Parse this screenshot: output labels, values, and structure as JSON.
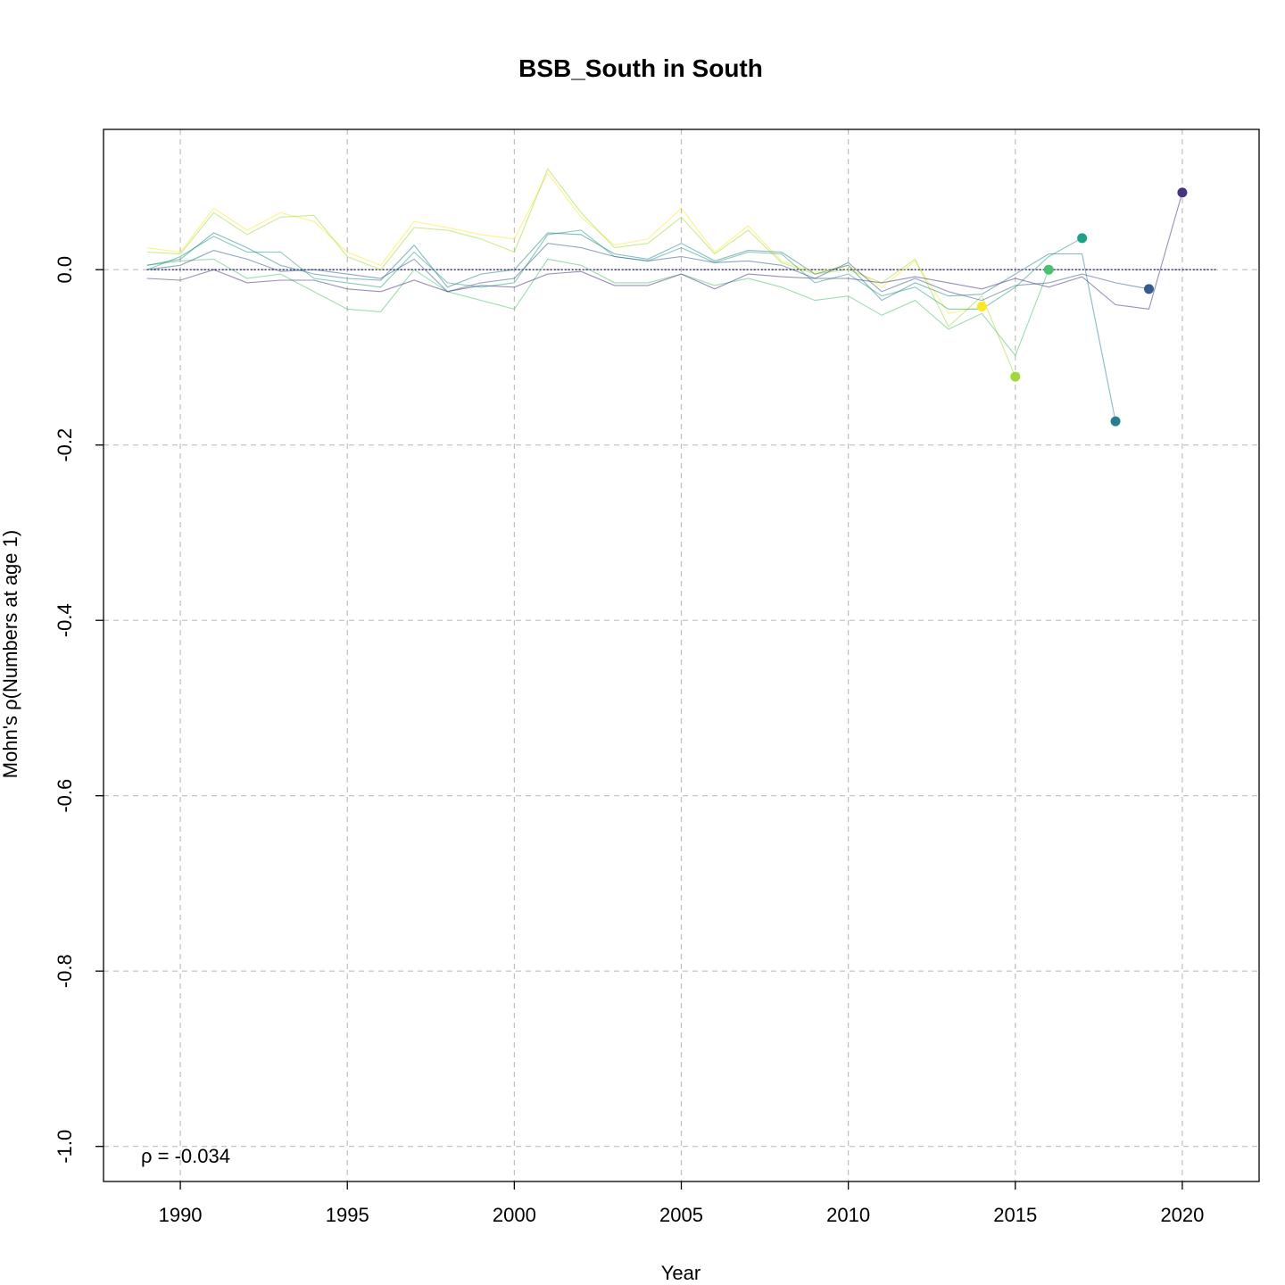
{
  "chart_data": {
    "type": "line",
    "title": "BSB_South in South",
    "xlabel": "Year",
    "ylabel": "Mohn's ρ(Numbers at age 1)",
    "xlim": [
      1987.7,
      2022.3
    ],
    "ylim": [
      -1.04,
      0.16
    ],
    "xticks": [
      1990,
      1995,
      2000,
      2005,
      2010,
      2015,
      2020
    ],
    "yticks": [
      -1.0,
      -0.8,
      -0.6,
      -0.4,
      -0.2,
      0.0
    ],
    "ytick_labels": [
      "-1.0",
      "-0.8",
      "-0.6",
      "-0.4",
      "-0.2",
      "0.0"
    ],
    "grid": true,
    "annotation": "ρ = -0.034",
    "reference_line": {
      "y": 0,
      "x_from": 1989,
      "x_to": 2021,
      "color": "#2d1e5e"
    },
    "series": [
      {
        "color": "#fde725",
        "end_year": 2014,
        "x": [
          1989,
          1990,
          1991,
          1992,
          1993,
          1994,
          1995,
          1996,
          1997,
          1998,
          1999,
          2000,
          2001,
          2002,
          2003,
          2004,
          2005,
          2006,
          2007,
          2008,
          2009,
          2010,
          2011,
          2012,
          2013,
          2014
        ],
        "y": [
          0.025,
          0.02,
          0.07,
          0.045,
          0.065,
          0.055,
          0.02,
          0.005,
          0.055,
          0.048,
          0.04,
          0.035,
          0.11,
          0.06,
          0.028,
          0.035,
          0.07,
          0.02,
          0.05,
          0.01,
          -0.003,
          0.005,
          -0.02,
          0.01,
          -0.05,
          -0.042
        ]
      },
      {
        "color": "#a0da39",
        "end_year": 2015,
        "x": [
          1989,
          1990,
          1991,
          1992,
          1993,
          1994,
          1995,
          1996,
          1997,
          1998,
          1999,
          2000,
          2001,
          2002,
          2003,
          2004,
          2005,
          2006,
          2007,
          2008,
          2009,
          2010,
          2011,
          2012,
          2013,
          2014,
          2015
        ],
        "y": [
          0.02,
          0.018,
          0.065,
          0.04,
          0.06,
          0.062,
          0.015,
          0.0,
          0.048,
          0.045,
          0.035,
          0.02,
          0.115,
          0.065,
          0.025,
          0.03,
          0.06,
          0.018,
          0.045,
          0.008,
          -0.005,
          0.0,
          -0.015,
          0.012,
          -0.065,
          -0.03,
          -0.122
        ]
      },
      {
        "color": "#4ac16d",
        "end_year": 2016,
        "x": [
          1989,
          1990,
          1991,
          1992,
          1993,
          1994,
          1995,
          1996,
          1997,
          1998,
          1999,
          2000,
          2001,
          2002,
          2003,
          2004,
          2005,
          2006,
          2007,
          2008,
          2009,
          2010,
          2011,
          2012,
          2013,
          2014,
          2015,
          2016
        ],
        "y": [
          0.005,
          0.01,
          0.012,
          -0.01,
          -0.005,
          -0.025,
          -0.045,
          -0.048,
          0.0,
          -0.025,
          -0.035,
          -0.045,
          0.012,
          0.005,
          -0.015,
          -0.015,
          -0.005,
          -0.018,
          -0.01,
          -0.02,
          -0.035,
          -0.03,
          -0.052,
          -0.035,
          -0.068,
          -0.05,
          -0.098,
          0.0
        ]
      },
      {
        "color": "#1fa187",
        "end_year": 2017,
        "x": [
          1989,
          1990,
          1991,
          1992,
          1993,
          1994,
          1995,
          1996,
          1997,
          1998,
          1999,
          2000,
          2001,
          2002,
          2003,
          2004,
          2005,
          2006,
          2007,
          2008,
          2009,
          2010,
          2011,
          2012,
          2013,
          2014,
          2015,
          2016,
          2017
        ],
        "y": [
          0.0,
          0.015,
          0.038,
          0.02,
          0.02,
          -0.01,
          -0.015,
          -0.02,
          0.02,
          -0.015,
          -0.02,
          -0.015,
          0.04,
          0.045,
          0.015,
          0.01,
          0.025,
          0.008,
          0.02,
          0.018,
          -0.015,
          -0.005,
          -0.03,
          -0.02,
          -0.045,
          -0.045,
          -0.02,
          0.015,
          0.036
        ]
      },
      {
        "color": "#277f8e",
        "end_year": 2018,
        "x": [
          1989,
          1990,
          1991,
          1992,
          1993,
          1994,
          1995,
          1996,
          1997,
          1998,
          1999,
          2000,
          2001,
          2002,
          2003,
          2004,
          2005,
          2006,
          2007,
          2008,
          2009,
          2010,
          2011,
          2012,
          2013,
          2014,
          2015,
          2016,
          2017,
          2018
        ],
        "y": [
          0.005,
          0.012,
          0.042,
          0.025,
          0.005,
          -0.005,
          -0.01,
          -0.012,
          0.028,
          -0.02,
          -0.005,
          0.0,
          0.042,
          0.04,
          0.018,
          0.012,
          0.03,
          0.01,
          0.022,
          0.02,
          -0.005,
          0.005,
          -0.035,
          -0.015,
          -0.03,
          -0.028,
          -0.005,
          0.018,
          0.018,
          -0.173
        ]
      },
      {
        "color": "#365c8d",
        "end_year": 2019,
        "x": [
          1989,
          1990,
          1991,
          1992,
          1993,
          1994,
          1995,
          1996,
          1997,
          1998,
          1999,
          2000,
          2001,
          2002,
          2003,
          2004,
          2005,
          2006,
          2007,
          2008,
          2009,
          2010,
          2011,
          2012,
          2013,
          2014,
          2015,
          2016,
          2017,
          2018,
          2019
        ],
        "y": [
          0.0,
          0.005,
          0.022,
          0.012,
          -0.002,
          0.0,
          -0.005,
          -0.01,
          0.012,
          -0.025,
          -0.015,
          -0.01,
          0.03,
          0.025,
          0.015,
          0.01,
          0.015,
          0.008,
          0.01,
          0.005,
          -0.01,
          0.008,
          -0.025,
          -0.01,
          -0.025,
          -0.035,
          -0.018,
          -0.015,
          -0.005,
          -0.015,
          -0.022
        ]
      },
      {
        "color": "#46337e",
        "end_year": 2020,
        "x": [
          1989,
          1990,
          1991,
          1992,
          1993,
          1994,
          1995,
          1996,
          1997,
          1998,
          1999,
          2000,
          2001,
          2002,
          2003,
          2004,
          2005,
          2006,
          2007,
          2008,
          2009,
          2010,
          2011,
          2012,
          2013,
          2014,
          2015,
          2016,
          2017,
          2018,
          2019,
          2020
        ],
        "y": [
          -0.01,
          -0.012,
          0.0,
          -0.015,
          -0.012,
          -0.012,
          -0.022,
          -0.025,
          -0.012,
          -0.025,
          -0.018,
          -0.02,
          -0.005,
          -0.002,
          -0.018,
          -0.018,
          -0.005,
          -0.022,
          -0.005,
          -0.008,
          -0.01,
          -0.01,
          -0.015,
          -0.008,
          -0.015,
          -0.022,
          -0.01,
          -0.02,
          -0.008,
          -0.04,
          -0.045,
          0.088
        ]
      }
    ]
  }
}
